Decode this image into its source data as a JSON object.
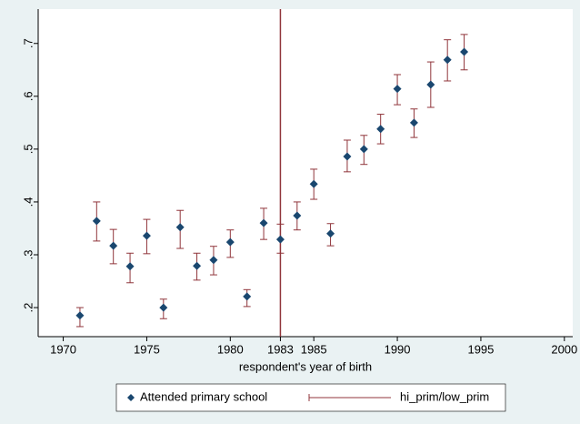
{
  "chart_data": {
    "type": "scatter",
    "x_label": "respondent's year of birth",
    "x": [
      1971,
      1972,
      1973,
      1974,
      1975,
      1976,
      1977,
      1978,
      1979,
      1980,
      1981,
      1982,
      1983,
      1984,
      1985,
      1986,
      1987,
      1988,
      1989,
      1990,
      1991,
      1992,
      1993,
      1994
    ],
    "series": [
      {
        "name": "Attended primary school",
        "color": "#1a476f",
        "values": [
          0.185,
          0.364,
          0.317,
          0.278,
          0.336,
          0.2,
          0.352,
          0.279,
          0.29,
          0.324,
          0.221,
          0.36,
          0.329,
          0.374,
          0.434,
          0.34,
          0.486,
          0.5,
          0.538,
          0.614,
          0.55,
          0.622,
          0.669,
          0.684
        ],
        "ci_low": [
          0.164,
          0.326,
          0.283,
          0.247,
          0.302,
          0.179,
          0.312,
          0.252,
          0.262,
          0.295,
          0.202,
          0.329,
          0.303,
          0.347,
          0.405,
          0.317,
          0.457,
          0.471,
          0.51,
          0.584,
          0.522,
          0.579,
          0.629,
          0.65
        ],
        "ci_high": [
          0.2,
          0.4,
          0.348,
          0.303,
          0.367,
          0.216,
          0.384,
          0.303,
          0.316,
          0.347,
          0.234,
          0.388,
          0.358,
          0.4,
          0.462,
          0.359,
          0.517,
          0.526,
          0.566,
          0.641,
          0.576,
          0.665,
          0.707,
          0.717
        ],
        "ci_color": "#90353b"
      }
    ],
    "vline": {
      "name": "hi_prim/low_prim",
      "value": 1983,
      "color": "#90353b"
    },
    "xlim": [
      1968.5,
      2000.5
    ],
    "xticks": [
      1970,
      1975,
      1980,
      1983,
      1985,
      1990,
      1995,
      2000
    ],
    "ylim": [
      0.145,
      0.765
    ],
    "yticks": [
      {
        "value": 0.2,
        "label": ".2"
      },
      {
        "value": 0.3,
        "label": ".3"
      },
      {
        "value": 0.4,
        "label": ".4"
      },
      {
        "value": 0.5,
        "label": ".5"
      },
      {
        "value": 0.6,
        "label": ".6"
      },
      {
        "value": 0.7,
        "label": ".7"
      }
    ],
    "legend": "bottom"
  }
}
